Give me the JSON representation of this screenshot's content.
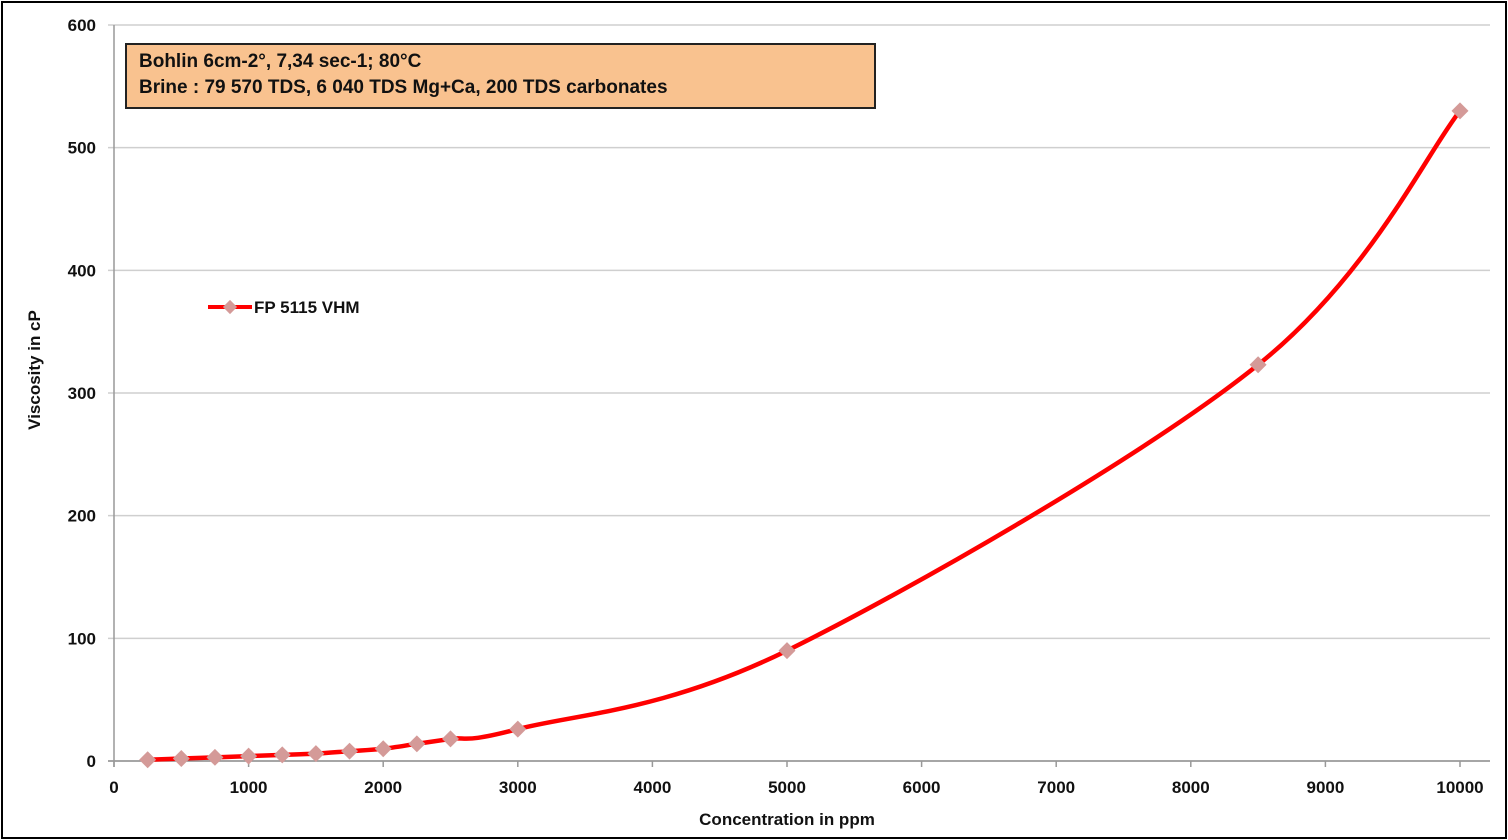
{
  "chart_data": {
    "type": "line",
    "title": "",
    "xlabel": "Concentration in ppm",
    "ylabel": "Viscosity in cP",
    "xlim": [
      0,
      10000
    ],
    "ylim": [
      0,
      600
    ],
    "xticks": [
      0,
      1000,
      2000,
      3000,
      4000,
      5000,
      6000,
      7000,
      8000,
      9000,
      10000
    ],
    "yticks": [
      0,
      100,
      200,
      300,
      400,
      500,
      600
    ],
    "grid": "horizontal",
    "legend_placement": "left-middle",
    "annotation": [
      "Bohlin 6cm-2°, 7,34 sec-1; 80°C",
      "Brine : 79 570 TDS, 6 040 TDS Mg+Ca, 200 TDS carbonates"
    ],
    "series": [
      {
        "name": "FP 5115 VHM",
        "line_color": "#ff0000",
        "marker_color": "#d49a98",
        "x": [
          250,
          500,
          750,
          1000,
          1250,
          1500,
          1750,
          2000,
          2250,
          2500,
          3000,
          5000,
          8500,
          10000
        ],
        "y": [
          1,
          2,
          3,
          4,
          5,
          6,
          8,
          10,
          14,
          18,
          26,
          90,
          323,
          530
        ]
      }
    ]
  }
}
